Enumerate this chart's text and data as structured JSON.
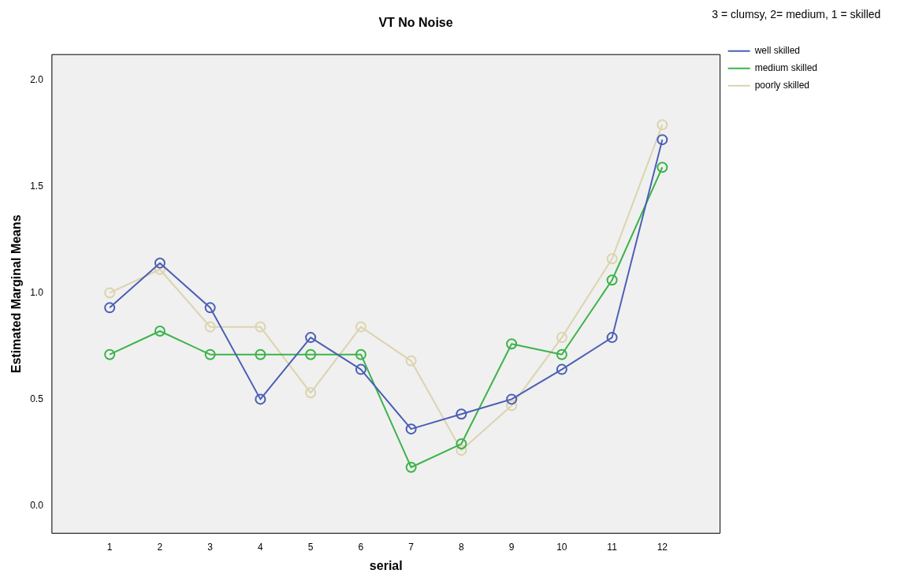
{
  "chart_data": {
    "type": "line",
    "title": "VT No Noise",
    "xlabel": "serial",
    "ylabel": "Estimated Marginal Means",
    "legend_title": "3 = clumsy, 2= medium, 1 = skilled",
    "x": [
      1,
      2,
      3,
      4,
      5,
      6,
      7,
      8,
      9,
      10,
      11,
      12
    ],
    "xlim": [
      -0.15,
      13.15
    ],
    "xticks": [
      1,
      2,
      3,
      4,
      5,
      6,
      7,
      8,
      9,
      10,
      11,
      12
    ],
    "ylim": [
      -0.13,
      2.12
    ],
    "yticks": [
      {
        "value": 0,
        "label": "0.0"
      },
      {
        "value": 0.5,
        "label": "0.5"
      },
      {
        "value": 1,
        "label": "1.0"
      },
      {
        "value": 1.5,
        "label": "1.5"
      },
      {
        "value": 2,
        "label": "2.0"
      }
    ],
    "series": [
      {
        "name": "well skilled",
        "color": "#4a5fb5",
        "values": [
          0.93,
          1.14,
          0.93,
          0.5,
          0.79,
          0.64,
          0.36,
          0.43,
          0.5,
          0.64,
          0.79,
          1.72
        ]
      },
      {
        "name": "medium skilled",
        "color": "#3cb34a",
        "values": [
          0.71,
          0.82,
          0.71,
          0.71,
          0.71,
          0.71,
          0.18,
          0.29,
          0.76,
          0.71,
          1.06,
          1.59
        ]
      },
      {
        "name": "poorly skilled",
        "color": "#dcd3ae",
        "values": [
          1.0,
          1.11,
          0.84,
          0.84,
          0.53,
          0.84,
          0.68,
          0.26,
          0.47,
          0.79,
          1.16,
          1.79
        ]
      }
    ],
    "marker": "circle",
    "grid": false,
    "legend": "top right"
  }
}
